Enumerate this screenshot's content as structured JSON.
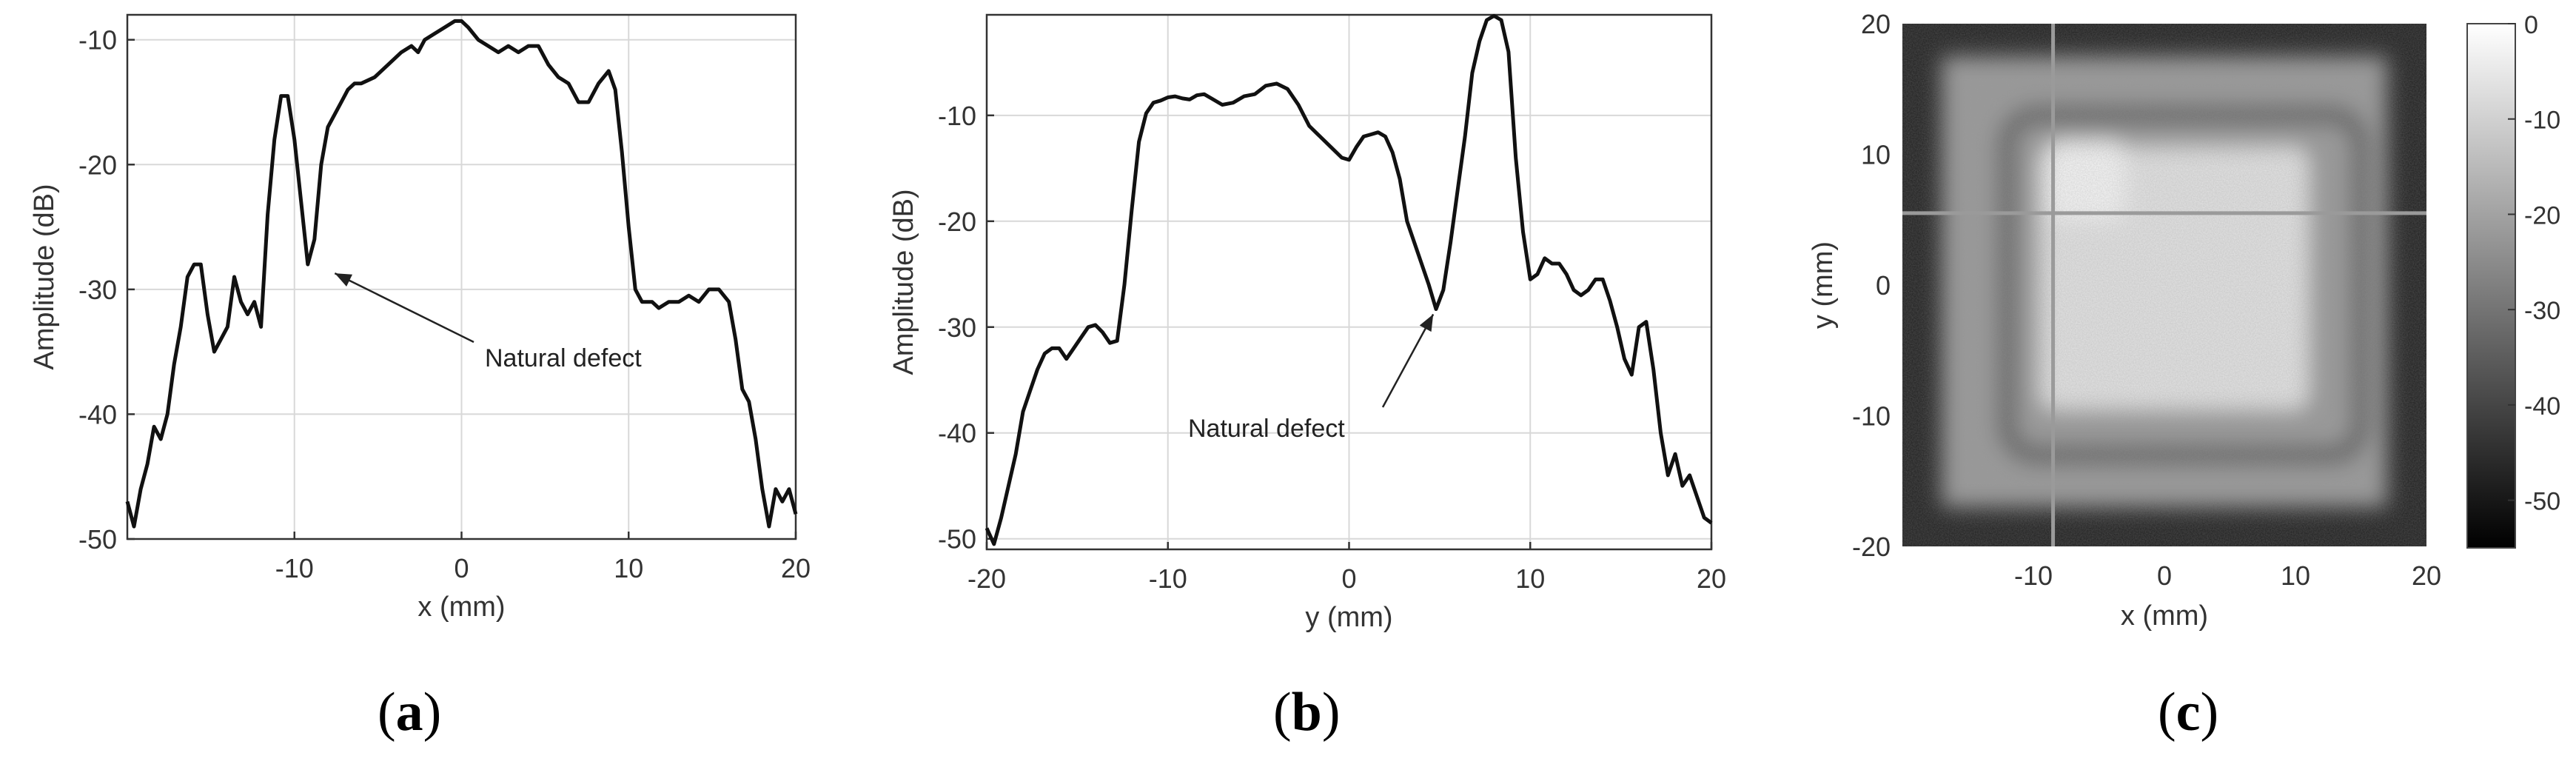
{
  "figure": {
    "captions": [
      {
        "open": "(",
        "letter": "a",
        "close": ")"
      },
      {
        "open": "(",
        "letter": "b",
        "close": ")"
      },
      {
        "open": "(",
        "letter": "c",
        "close": ")"
      }
    ]
  },
  "chart_data": [
    {
      "type": "line",
      "xlabel": "x (mm)",
      "ylabel": "Amplitude (dB)",
      "xlim": [
        -20,
        20
      ],
      "ylim": [
        -50,
        -8
      ],
      "xticks": [
        -10,
        0,
        10,
        20
      ],
      "yticks": [
        -50,
        -40,
        -30,
        -20,
        -10
      ],
      "grid": true,
      "line_color": "#111111",
      "annotation": {
        "text": "Natural defect",
        "point": [
          -7.9,
          -28.5
        ]
      },
      "series": [
        {
          "x": [
            -20,
            -19.6,
            -19.2,
            -18.8,
            -18.4,
            -18,
            -17.6,
            -17.2,
            -16.8,
            -16.4,
            -16,
            -15.6,
            -15.2,
            -14.8,
            -14.4,
            -14,
            -13.6,
            -13.2,
            -12.8,
            -12.4,
            -12,
            -11.6,
            -11.2,
            -10.8,
            -10.4,
            -10,
            -9.6,
            -9.2,
            -8.8,
            -8.4,
            -8,
            -7.6,
            -7.2,
            -6.8,
            -6.4,
            -6,
            -5.2,
            -4.4,
            -3.6,
            -3,
            -2.6,
            -2.2,
            -1.6,
            -1,
            -0.4,
            0,
            0.4,
            1,
            1.6,
            2.2,
            2.8,
            3.4,
            4,
            4.6,
            5.2,
            5.8,
            6.4,
            7,
            7.6,
            8.2,
            8.8,
            9.2,
            9.6,
            10,
            10.4,
            10.8,
            11,
            11.4,
            11.8,
            12.4,
            13,
            13.6,
            14.2,
            14.8,
            15.4,
            16,
            16.4,
            16.8,
            17.2,
            17.6,
            18,
            18.4,
            18.8,
            19.2,
            19.6,
            20
          ],
          "y": [
            -47,
            -49,
            -46,
            -44,
            -41,
            -42,
            -40,
            -36,
            -33,
            -29,
            -28,
            -28,
            -32,
            -35,
            -34,
            -33,
            -29,
            -31,
            -32,
            -31,
            -33,
            -24,
            -18,
            -14.5,
            -14.5,
            -18,
            -23,
            -28,
            -26,
            -20,
            -17,
            -16,
            -15,
            -14,
            -13.5,
            -13.5,
            -13,
            -12,
            -11,
            -10.5,
            -11,
            -10,
            -9.5,
            -9,
            -8.5,
            -8.5,
            -9,
            -10,
            -10.5,
            -11,
            -10.5,
            -11,
            -10.5,
            -10.5,
            -12,
            -13,
            -13.5,
            -15,
            -15,
            -13.5,
            -12.5,
            -14,
            -19,
            -25,
            -30,
            -31,
            -31,
            -31,
            -31.5,
            -31,
            -31,
            -30.5,
            -31,
            -30,
            -30,
            -31,
            -34,
            -38,
            -39,
            -42,
            -46,
            -49,
            -46,
            -47,
            -46,
            -48
          ]
        }
      ]
    },
    {
      "type": "line",
      "xlabel": "y (mm)",
      "ylabel": "Amplitude (dB)",
      "xlim": [
        -20,
        20
      ],
      "ylim": [
        -51,
        -0.5
      ],
      "xticks": [
        -20,
        -10,
        0,
        10,
        20
      ],
      "yticks": [
        -50,
        -40,
        -30,
        -20,
        -10
      ],
      "grid": true,
      "line_color": "#111111",
      "annotation": {
        "text": "Natural defect",
        "point": [
          4.8,
          -28.3
        ]
      },
      "series": [
        {
          "x": [
            -20,
            -19.6,
            -19.2,
            -18.8,
            -18.4,
            -18,
            -17.6,
            -17.2,
            -16.8,
            -16.4,
            -16,
            -15.6,
            -15.2,
            -14.8,
            -14.4,
            -14,
            -13.6,
            -13.2,
            -12.8,
            -12.4,
            -12,
            -11.6,
            -11.2,
            -10.8,
            -10.4,
            -10,
            -9.6,
            -9.2,
            -8.8,
            -8.4,
            -8,
            -7.6,
            -7,
            -6.4,
            -5.8,
            -5.2,
            -4.6,
            -4,
            -3.4,
            -2.8,
            -2.2,
            -1.6,
            -1,
            -0.4,
            0,
            0.4,
            0.8,
            1.2,
            1.6,
            2,
            2.4,
            2.8,
            3.2,
            3.6,
            4,
            4.4,
            4.8,
            5.2,
            5.6,
            6,
            6.4,
            6.8,
            7.2,
            7.6,
            8,
            8.4,
            8.8,
            9.2,
            9.6,
            10,
            10.4,
            10.8,
            11.2,
            11.6,
            12,
            12.4,
            12.8,
            13.2,
            13.6,
            14,
            14.4,
            14.8,
            15.2,
            15.6,
            16,
            16.4,
            16.8,
            17.2,
            17.6,
            18,
            18.4,
            18.8,
            19.2,
            19.6,
            20
          ],
          "y": [
            -49,
            -50.5,
            -48,
            -45,
            -42,
            -38,
            -36,
            -34,
            -32.5,
            -32,
            -32,
            -33,
            -32,
            -31,
            -30,
            -29.8,
            -30.5,
            -31.5,
            -31.3,
            -26,
            -19,
            -12.5,
            -9.8,
            -8.8,
            -8.6,
            -8.3,
            -8.2,
            -8.4,
            -8.5,
            -8.1,
            -8,
            -8.4,
            -9,
            -8.8,
            -8.2,
            -8,
            -7.2,
            -7,
            -7.5,
            -9,
            -11,
            -12,
            -13,
            -14,
            -14.2,
            -13,
            -12,
            -11.8,
            -11.6,
            -12,
            -13.5,
            -16,
            -20,
            -22,
            -24,
            -26,
            -28.3,
            -26.5,
            -22,
            -17,
            -12,
            -6,
            -3,
            -1,
            -0.6,
            -1,
            -4,
            -14,
            -21,
            -25.5,
            -25,
            -23.5,
            -24,
            -24,
            -25,
            -26.5,
            -27,
            -26.5,
            -25.5,
            -25.5,
            -27.5,
            -30,
            -33,
            -34.5,
            -30,
            -29.5,
            -34,
            -40,
            -44,
            -42,
            -45,
            -44,
            -46,
            -48,
            -48.5
          ]
        }
      ]
    },
    {
      "type": "heatmap",
      "xlabel": "x (mm)",
      "ylabel": "y (mm)",
      "xlim": [
        -20,
        20
      ],
      "ylim": [
        -20,
        20
      ],
      "xticks": [
        -10,
        0,
        10,
        20
      ],
      "yticks": [
        -20,
        -10,
        0,
        10,
        20
      ],
      "colormap": "gray",
      "colorbar": {
        "min": -55,
        "max": 0,
        "ticks": [
          0,
          -10,
          -20,
          -30,
          -40,
          -50
        ]
      },
      "crosshair": {
        "x": -8.5,
        "y": 5.5
      },
      "regions": [
        {
          "name": "plate",
          "x": [
            -17,
            17
          ],
          "y": [
            -17,
            17.5
          ],
          "value_dB": -22
        },
        {
          "name": "bonded-area",
          "x": [
            -9.5,
            11
          ],
          "y": [
            -9.5,
            10.5
          ],
          "value_dB": -6
        },
        {
          "name": "top-left-bright",
          "x": [
            -9,
            -3
          ],
          "y": [
            5,
            11
          ],
          "value_dB": -2
        },
        {
          "name": "dark-ring",
          "x": [
            -12,
            15
          ],
          "y": [
            -13,
            13
          ],
          "value_dB": -38
        }
      ]
    }
  ]
}
